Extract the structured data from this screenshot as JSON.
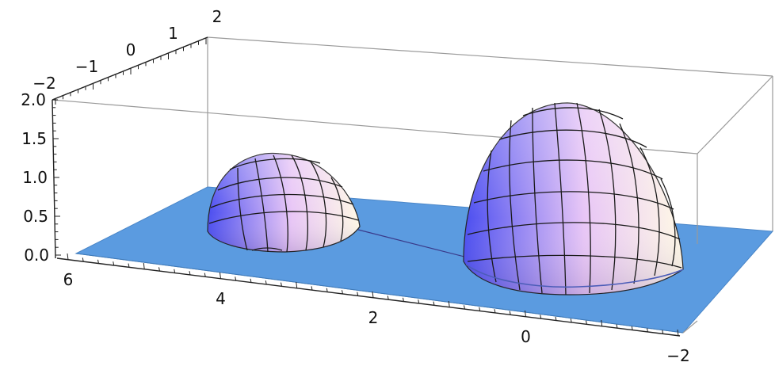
{
  "chart_data": {
    "type": "surface3d",
    "title": "",
    "xlabel": "",
    "ylabel": "",
    "zlabel": "",
    "x_ticks": [
      "6",
      "4",
      "2",
      "0",
      "−2"
    ],
    "y_ticks": [
      "−2",
      "−1",
      "0",
      "1",
      "2"
    ],
    "z_ticks": [
      "0.0",
      "0.5",
      "1.0",
      "1.5",
      "2.0"
    ],
    "xlim": [
      -2,
      6
    ],
    "ylim": [
      -2,
      2
    ],
    "zlim": [
      0,
      2
    ],
    "grid": false,
    "bounding_box": true,
    "surface_color": "#5b9be0",
    "bump_colors": [
      "#4a4df0",
      "#e8c6f6",
      "#fff9e6"
    ],
    "series": [
      {
        "x": 0.7,
        "y": 0,
        "radius": 1.4,
        "peak": 2.0
      },
      {
        "x": 3.6,
        "y": 0,
        "radius": 1.0,
        "peak": 1.3
      }
    ]
  }
}
